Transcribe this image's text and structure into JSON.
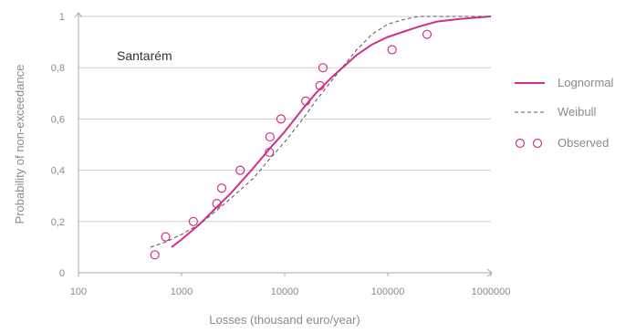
{
  "chart_data": {
    "type": "line",
    "annotation": "Santarém",
    "xlabel": "Losses (thousand euro/year)",
    "ylabel": "Probability of non-exceedance",
    "xscale": "log",
    "xlim": [
      100,
      1000000
    ],
    "ylim": [
      0,
      1
    ],
    "x_ticks": [
      100,
      1000,
      10000,
      100000,
      1000000
    ],
    "x_tick_labels": [
      "100",
      "1000",
      "10000",
      "100000",
      "1000000"
    ],
    "y_ticks": [
      0,
      0.2,
      0.4,
      0.6,
      0.8,
      1
    ],
    "y_tick_labels": [
      "0",
      "0,2",
      "0,4",
      "0,6",
      "0,8",
      "1"
    ],
    "grid": "horizontal",
    "legend_position": "right",
    "colors": {
      "lognormal": "#d42e8c",
      "weibull": "#555555",
      "observed": "#d42e8c"
    },
    "series": [
      {
        "name": "Lognormal",
        "style": "solid",
        "x": [
          800,
          1000,
          1500,
          2000,
          3000,
          5000,
          7000,
          10000,
          15000,
          20000,
          30000,
          50000,
          70000,
          100000,
          200000,
          300000,
          500000,
          1000000
        ],
        "y": [
          0.1,
          0.13,
          0.19,
          0.24,
          0.31,
          0.41,
          0.48,
          0.55,
          0.64,
          0.7,
          0.77,
          0.85,
          0.89,
          0.92,
          0.96,
          0.98,
          0.99,
          1.0
        ]
      },
      {
        "name": "Weibull",
        "style": "dashed",
        "x": [
          500,
          700,
          1000,
          1500,
          2000,
          3000,
          5000,
          7000,
          10000,
          15000,
          20000,
          30000,
          50000,
          70000,
          100000,
          150000,
          200000,
          300000,
          500000,
          1000000
        ],
        "y": [
          0.1,
          0.12,
          0.15,
          0.19,
          0.23,
          0.29,
          0.37,
          0.44,
          0.51,
          0.6,
          0.67,
          0.76,
          0.87,
          0.93,
          0.97,
          0.99,
          1.0,
          1.0,
          1.0,
          1.0
        ]
      },
      {
        "name": "Observed",
        "style": "markers",
        "x": [
          550,
          700,
          1300,
          2200,
          2450,
          3700,
          7100,
          7200,
          9200,
          16000,
          22000,
          23500,
          110000,
          240000
        ],
        "y": [
          0.07,
          0.14,
          0.2,
          0.27,
          0.33,
          0.4,
          0.47,
          0.53,
          0.6,
          0.67,
          0.73,
          0.8,
          0.87,
          0.93
        ]
      }
    ]
  }
}
